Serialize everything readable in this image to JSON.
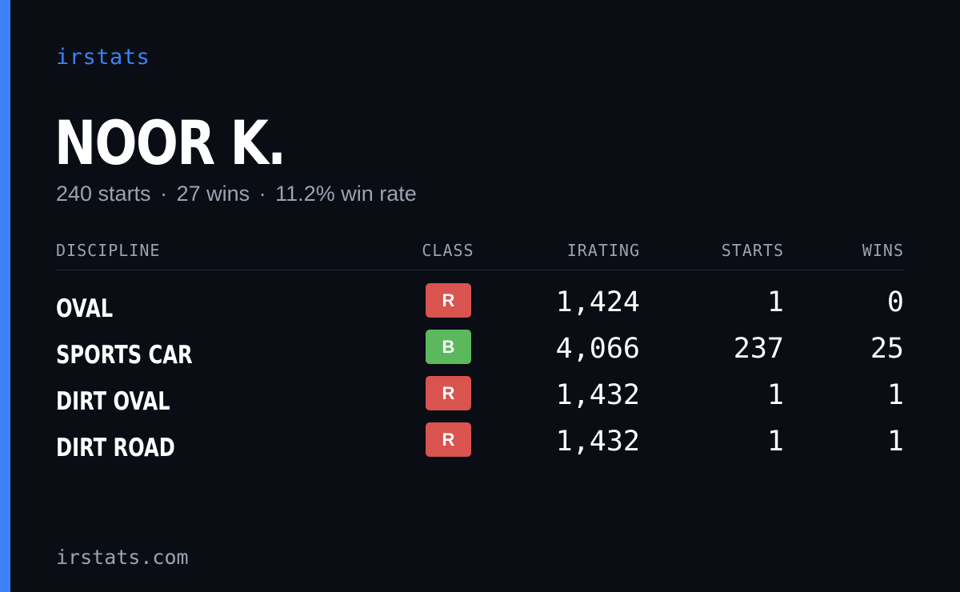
{
  "colors": {
    "background": "#0a0d14",
    "accent": "#3b82f6",
    "muted_text": "#9aa3b2",
    "class_r": "#d9534f",
    "class_b": "#5cb85c"
  },
  "brand": "irstats",
  "driver": {
    "name": "NOOR K.",
    "starts_summary": "240 starts",
    "wins_summary": "27 wins",
    "win_rate_summary": "11.2% win rate",
    "separator": "·"
  },
  "table": {
    "headers": {
      "discipline": "DISCIPLINE",
      "class": "CLASS",
      "irating": "IRATING",
      "starts": "STARTS",
      "wins": "WINS"
    },
    "rows": [
      {
        "discipline": "OVAL",
        "class": "R",
        "class_color": "#d9534f",
        "irating": "1,424",
        "starts": "1",
        "wins": "0"
      },
      {
        "discipline": "SPORTS CAR",
        "class": "B",
        "class_color": "#5cb85c",
        "irating": "4,066",
        "starts": "237",
        "wins": "25"
      },
      {
        "discipline": "DIRT OVAL",
        "class": "R",
        "class_color": "#d9534f",
        "irating": "1,432",
        "starts": "1",
        "wins": "1"
      },
      {
        "discipline": "DIRT ROAD",
        "class": "R",
        "class_color": "#d9534f",
        "irating": "1,432",
        "starts": "1",
        "wins": "1"
      }
    ]
  },
  "footer": "irstats.com"
}
